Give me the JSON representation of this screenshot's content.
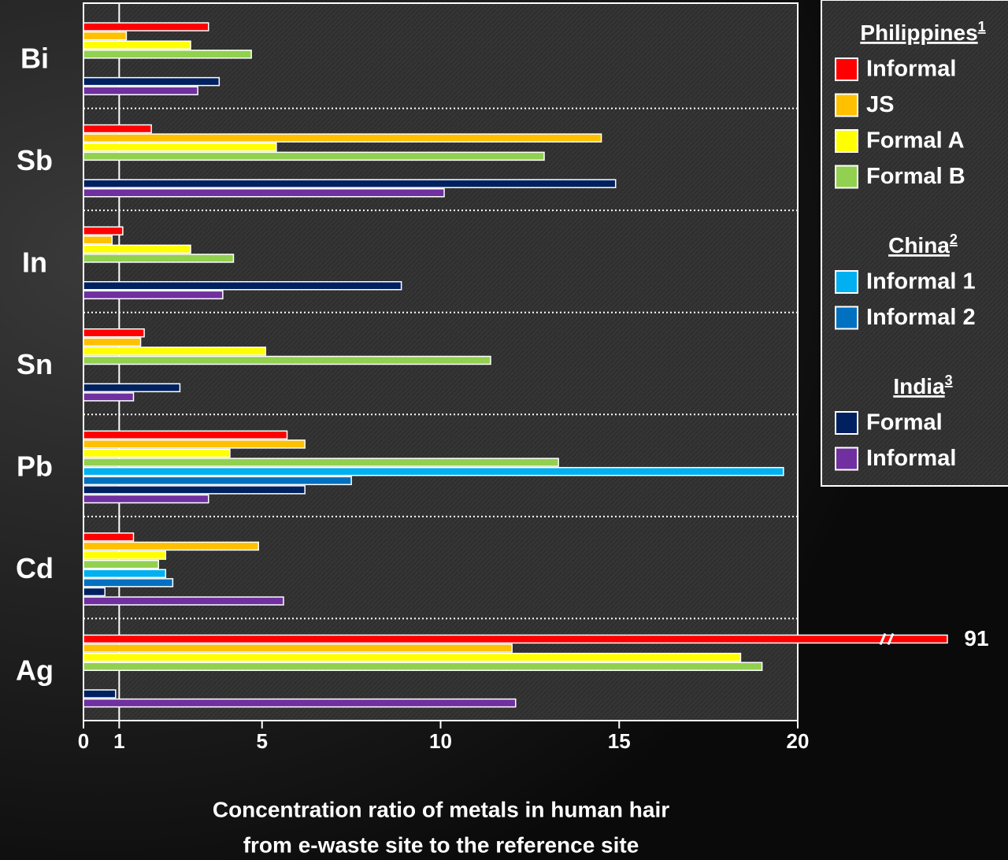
{
  "chart_data": {
    "type": "barh",
    "categories": [
      "Bi",
      "Sb",
      "In",
      "Sn",
      "Pb",
      "Cd",
      "Ag"
    ],
    "series": [
      {
        "name": "Informal",
        "group": "Philippines",
        "color": "#ff0000",
        "values": [
          3.5,
          1.9,
          1.1,
          1.7,
          5.7,
          1.4,
          91
        ]
      },
      {
        "name": "JS",
        "group": "Philippines",
        "color": "#ffc000",
        "values": [
          1.2,
          14.5,
          0.8,
          1.6,
          6.2,
          4.9,
          12.0
        ]
      },
      {
        "name": "Formal A",
        "group": "Philippines",
        "color": "#ffff00",
        "values": [
          3.0,
          5.4,
          3.0,
          5.1,
          4.1,
          2.3,
          18.4
        ]
      },
      {
        "name": "Formal B",
        "group": "Philippines",
        "color": "#92d050",
        "values": [
          4.7,
          12.9,
          4.2,
          11.4,
          13.3,
          2.1,
          19.0
        ]
      },
      {
        "name": "Informal 1",
        "group": "China",
        "color": "#00b0f0",
        "values": [
          null,
          null,
          null,
          null,
          19.6,
          2.3,
          null
        ]
      },
      {
        "name": "Informal 2",
        "group": "China",
        "color": "#0070c0",
        "values": [
          null,
          null,
          null,
          null,
          7.5,
          2.5,
          null
        ]
      },
      {
        "name": "Formal",
        "group": "India",
        "color": "#002060",
        "values": [
          3.8,
          14.9,
          8.9,
          2.7,
          6.2,
          0.6,
          0.9
        ]
      },
      {
        "name": "Informal",
        "group": "India",
        "color": "#7030a0",
        "values": [
          3.2,
          10.1,
          3.9,
          1.4,
          3.5,
          5.6,
          12.1
        ]
      }
    ],
    "legend_groups": [
      {
        "title": "Philippines",
        "note": "1"
      },
      {
        "title": "China",
        "note": "2"
      },
      {
        "title": "India",
        "note": "3"
      }
    ],
    "xlim": [
      0,
      20
    ],
    "xticks": [
      0,
      1,
      5,
      10,
      15,
      20
    ],
    "reference_line": 1,
    "x_label": [
      "Concentration ratio of metals in human hair",
      "from e-waste site to the reference site"
    ],
    "axis_break": true
  }
}
